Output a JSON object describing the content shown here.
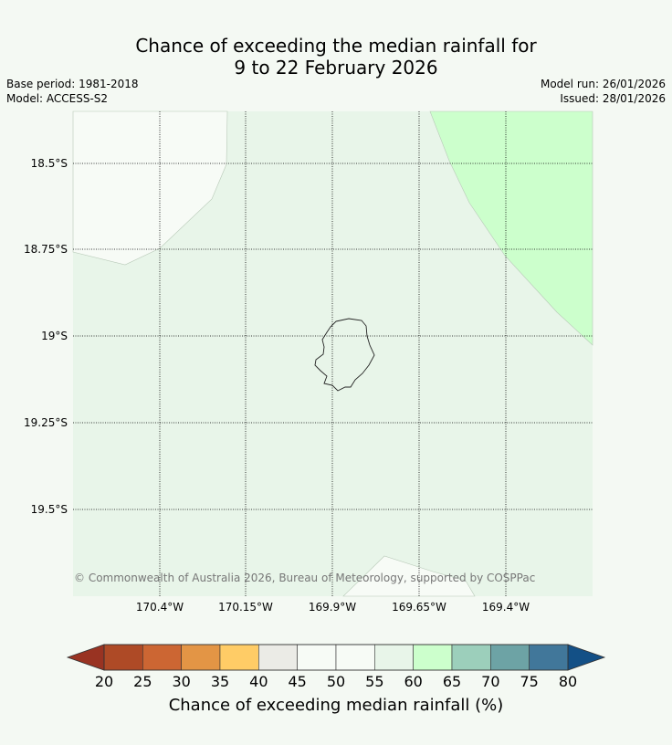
{
  "title": {
    "line1": "Chance of exceeding the median rainfall for",
    "line2": "9 to 22 February 2026"
  },
  "meta": {
    "base_period": "Base period: 1981-2018",
    "model": "Model: ACCESS-S2",
    "model_run": "Model run: 26/01/2026",
    "issued": "Issued: 28/01/2026"
  },
  "map": {
    "lat_labels": [
      "18.5°S",
      "18.75°S",
      "19°S",
      "19.25°S",
      "19.5°S"
    ],
    "lon_labels": [
      "170.4°W",
      "170.15°W",
      "169.9°W",
      "169.65°W",
      "169.4°W"
    ],
    "copyright": "© Commonwealth of Australia 2026, Bureau of Meteorology, supported by COSPPac",
    "colors": {
      "frame_background": "#f4f9f3",
      "class_45_50": "#f7fbf6",
      "class_55_60": "#e8f5e9",
      "class_60_65": "#ccffcc"
    }
  },
  "colorbar": {
    "title": "Chance of exceeding median rainfall (%)",
    "ticks": [
      "20",
      "25",
      "30",
      "35",
      "40",
      "45",
      "50",
      "55",
      "60",
      "65",
      "70",
      "75",
      "80"
    ],
    "colors": [
      "#ae4a26",
      "#cc6633",
      "#e39545",
      "#ffcc66",
      "#ebebe6",
      "#f7fbf6",
      "#f7fbf6",
      "#e8f5e9",
      "#ccffcc",
      "#9ccfbb",
      "#6da3a5",
      "#41779a"
    ],
    "under_color": "#993322",
    "over_color": "#135086"
  }
}
